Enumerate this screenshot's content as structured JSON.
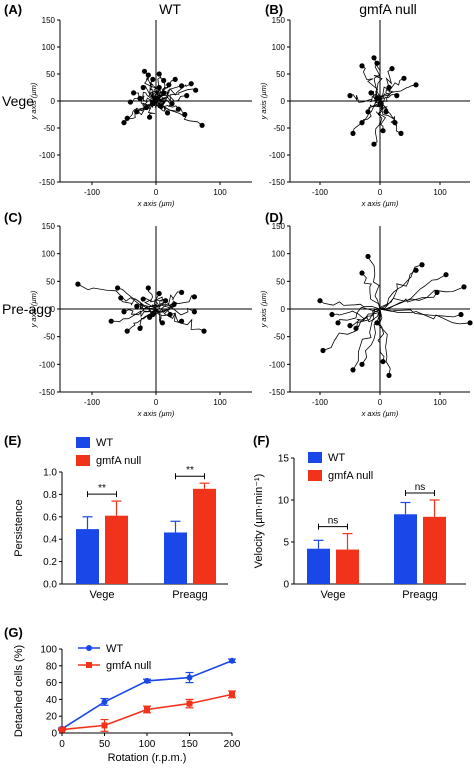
{
  "panels": {
    "A": {
      "letter": "(A)",
      "title": "WT"
    },
    "B": {
      "letter": "(B)",
      "title": "gmfA null"
    },
    "C": {
      "letter": "(C)"
    },
    "D": {
      "letter": "(D)"
    },
    "E": {
      "letter": "(E)"
    },
    "F": {
      "letter": "(F)"
    },
    "G": {
      "letter": "(G)"
    }
  },
  "row_labels": {
    "vege": "Vege",
    "preagg": "Pre-agg"
  },
  "colors": {
    "wt": "#1a47e8",
    "null": "#f2331c",
    "track": "#000000"
  },
  "chart_data": [
    {
      "id": "A",
      "type": "scatter",
      "title": "WT",
      "subtitle": "Vege",
      "xlabel": "x axis (µm)",
      "ylabel": "y axis (µm)",
      "xlim": [
        -150,
        150
      ],
      "ylim": [
        -150,
        150
      ],
      "xticks": [
        -100,
        0,
        100
      ],
      "yticks": [
        -150,
        -100,
        -50,
        0,
        50,
        100,
        150
      ],
      "series": [
        {
          "values": [
            [
              -18,
              55
            ],
            [
              -12,
              48
            ],
            [
              -5,
              40
            ],
            [
              5,
              50
            ],
            [
              12,
              38
            ],
            [
              20,
              30
            ],
            [
              30,
              40
            ],
            [
              40,
              28
            ],
            [
              55,
              32
            ],
            [
              62,
              20
            ],
            [
              48,
              10
            ],
            [
              25,
              -5
            ],
            [
              35,
              -15
            ],
            [
              45,
              -25
            ],
            [
              72,
              -45
            ],
            [
              18,
              -22
            ],
            [
              -10,
              -30
            ],
            [
              -30,
              -20
            ],
            [
              -45,
              -32
            ],
            [
              -50,
              -40
            ],
            [
              -25,
              5
            ],
            [
              -40,
              -2
            ],
            [
              -20,
              25
            ],
            [
              -35,
              15
            ],
            [
              0,
              5
            ],
            [
              8,
              -10
            ],
            [
              12,
              15
            ],
            [
              -5,
              -5
            ],
            [
              -15,
              -12
            ],
            [
              5,
              25
            ]
          ]
        }
      ]
    },
    {
      "id": "B",
      "type": "scatter",
      "title": "gmfA null",
      "subtitle": "Vege",
      "xlabel": "x axis (µm)",
      "ylabel": "y axis (µm)",
      "xlim": [
        -150,
        150
      ],
      "ylim": [
        -150,
        150
      ],
      "xticks": [
        -100,
        0,
        100
      ],
      "yticks": [
        -150,
        -100,
        -50,
        0,
        50,
        100,
        150
      ],
      "series": [
        {
          "values": [
            [
              -10,
              80
            ],
            [
              -5,
              70
            ],
            [
              -30,
              65
            ],
            [
              20,
              60
            ],
            [
              40,
              42
            ],
            [
              60,
              30
            ],
            [
              -50,
              10
            ],
            [
              -20,
              -20
            ],
            [
              -30,
              -40
            ],
            [
              -45,
              -60
            ],
            [
              -10,
              -80
            ],
            [
              5,
              -55
            ],
            [
              35,
              -60
            ],
            [
              25,
              -40
            ],
            [
              28,
              10
            ],
            [
              -5,
              5
            ],
            [
              0,
              -5
            ],
            [
              10,
              -20
            ],
            [
              -15,
              15
            ],
            [
              15,
              25
            ]
          ]
        }
      ]
    },
    {
      "id": "C",
      "type": "scatter",
      "subtitle": "Pre-agg",
      "xlabel": "x axis (µm)",
      "ylabel": "y axis (µm)",
      "xlim": [
        -150,
        150
      ],
      "ylim": [
        -150,
        150
      ],
      "xticks": [
        -100,
        0,
        100
      ],
      "yticks": [
        -150,
        -100,
        -50,
        0,
        50,
        100,
        150
      ],
      "series": [
        {
          "values": [
            [
              -122,
              45
            ],
            [
              -60,
              38
            ],
            [
              -12,
              38
            ],
            [
              -55,
              20
            ],
            [
              5,
              28
            ],
            [
              40,
              30
            ],
            [
              60,
              22
            ],
            [
              60,
              -5
            ],
            [
              40,
              -22
            ],
            [
              75,
              -40
            ],
            [
              -50,
              -5
            ],
            [
              -70,
              -22
            ],
            [
              -45,
              -40
            ],
            [
              -25,
              -35
            ],
            [
              -10,
              -15
            ],
            [
              10,
              -25
            ],
            [
              22,
              -10
            ],
            [
              28,
              8
            ],
            [
              -30,
              5
            ],
            [
              -5,
              -10
            ],
            [
              -20,
              18
            ],
            [
              15,
              15
            ]
          ]
        }
      ]
    },
    {
      "id": "D",
      "type": "scatter",
      "xlabel": "x axis (µm)",
      "ylabel": "y axis (µm)",
      "xlim": [
        -150,
        150
      ],
      "ylim": [
        -150,
        150
      ],
      "xticks": [
        -100,
        0,
        100
      ],
      "yticks": [
        -150,
        -100,
        -50,
        0,
        50,
        100,
        150
      ],
      "series": [
        {
          "values": [
            [
              -20,
              95
            ],
            [
              -30,
              65
            ],
            [
              70,
              80
            ],
            [
              60,
              70
            ],
            [
              110,
              62
            ],
            [
              140,
              40
            ],
            [
              95,
              30
            ],
            [
              135,
              -10
            ],
            [
              150,
              -25
            ],
            [
              -100,
              15
            ],
            [
              -80,
              -10
            ],
            [
              -70,
              -25
            ],
            [
              -50,
              -30
            ],
            [
              -40,
              -35
            ],
            [
              -95,
              -75
            ],
            [
              -45,
              -110
            ],
            [
              -30,
              -100
            ],
            [
              15,
              -120
            ],
            [
              5,
              -95
            ],
            [
              -5,
              -25
            ]
          ]
        }
      ]
    },
    {
      "id": "E",
      "type": "bar",
      "categories": [
        "Vege",
        "Preagg"
      ],
      "series": [
        {
          "name": "WT",
          "values": [
            0.49,
            0.46
          ],
          "errors": [
            0.11,
            0.1
          ]
        },
        {
          "name": "gmfA null",
          "values": [
            0.61,
            0.85
          ],
          "errors": [
            0.13,
            0.05
          ]
        }
      ],
      "ylabel": "Persistence",
      "xlabel": "",
      "ylim": [
        0,
        1.0
      ],
      "yticks": [
        0.0,
        0.2,
        0.4,
        0.6,
        0.8,
        1.0
      ],
      "yticklabels": [
        "0.0",
        "0.2",
        "0.4",
        "0.6",
        "0.8",
        "1.0"
      ],
      "annotations": [
        "**",
        "**"
      ],
      "legend": "top-left"
    },
    {
      "id": "F",
      "type": "bar",
      "categories": [
        "Vege",
        "Preagg"
      ],
      "series": [
        {
          "name": "WT",
          "values": [
            4.2,
            8.3
          ],
          "errors": [
            1.0,
            1.4
          ]
        },
        {
          "name": "gmfA null",
          "values": [
            4.1,
            8.0
          ],
          "errors": [
            1.9,
            2.0
          ]
        }
      ],
      "ylabel": "Velocity (µm·min⁻¹)",
      "xlabel": "",
      "ylim": [
        0,
        15
      ],
      "yticks": [
        0,
        5,
        10,
        15
      ],
      "yticklabels": [
        "0",
        "5",
        "10",
        "15"
      ],
      "annotations": [
        "ns",
        "ns"
      ],
      "legend": "top-left"
    },
    {
      "id": "G",
      "type": "line",
      "x": [
        0,
        50,
        100,
        150,
        200
      ],
      "series": [
        {
          "name": "WT",
          "values": [
            5,
            37,
            62,
            66,
            86
          ],
          "errors": [
            1,
            4,
            2,
            6,
            2
          ]
        },
        {
          "name": "gmfA null",
          "values": [
            4,
            9,
            28,
            35,
            46
          ],
          "errors": [
            1,
            7,
            4,
            5,
            4
          ]
        }
      ],
      "xlabel": "Rotation (r.p.m.)",
      "ylabel": "Detached cells (%)",
      "xlim": [
        0,
        200
      ],
      "ylim": [
        0,
        100
      ],
      "xticks": [
        0,
        50,
        100,
        150,
        200
      ],
      "yticks": [
        0,
        20,
        40,
        60,
        80,
        100
      ],
      "legend": "top-left"
    }
  ]
}
